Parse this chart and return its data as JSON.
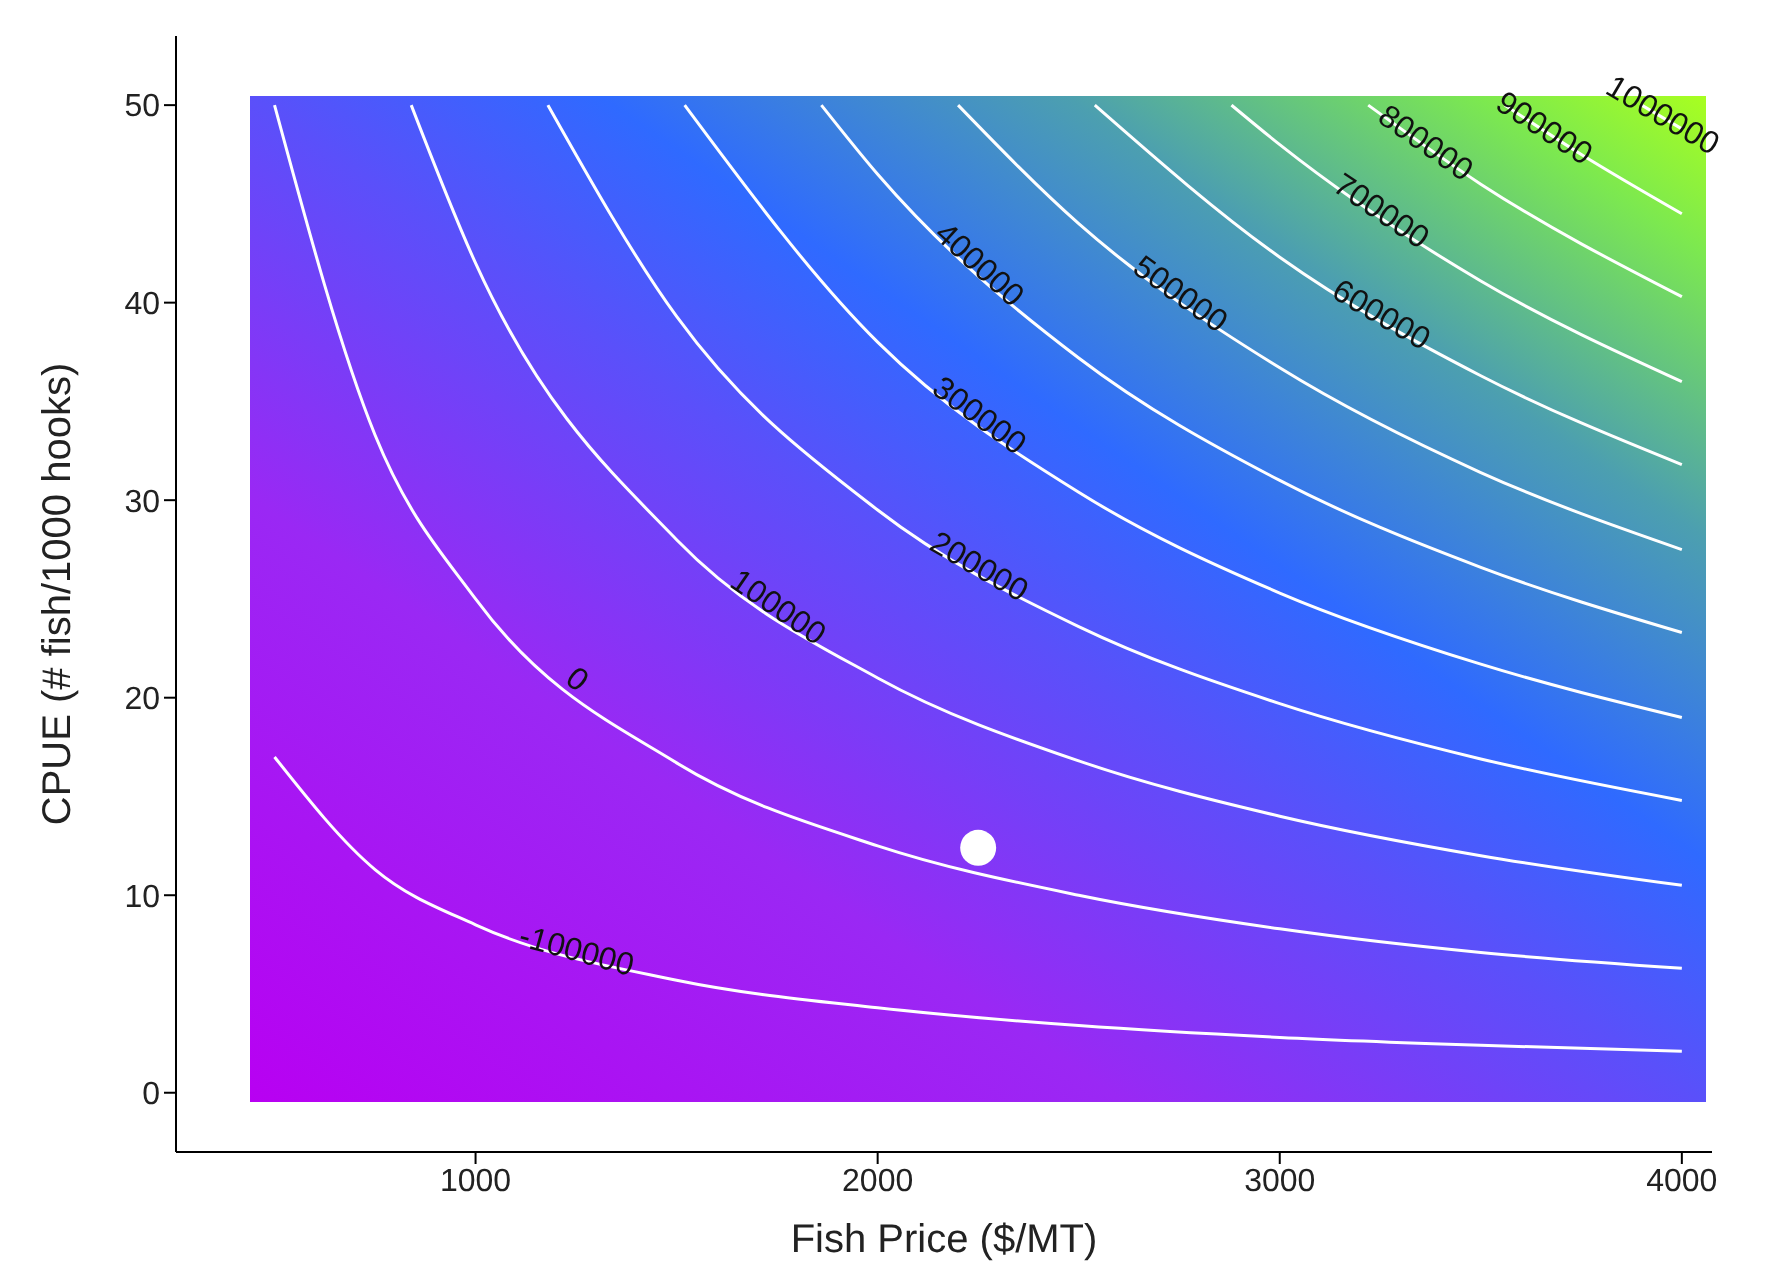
{
  "chart_data": {
    "type": "line",
    "xlabel": "Fish Price ($/MT)",
    "ylabel": "CPUE (# fish/1000 hooks)",
    "xlim": [
      255,
      4075
    ],
    "xticks": [
      1000,
      2000,
      3000,
      4000
    ],
    "ylim": [
      -3,
      53.5
    ],
    "yticks": [
      0,
      10,
      20,
      30,
      40,
      50
    ],
    "grid": false,
    "legend": false,
    "marker": "none",
    "line_style": "solid",
    "series": [
      {
        "name": "-100000",
        "color": "#ffffff",
        "x": [
          500,
          750,
          1000,
          1500,
          2000,
          2500,
          3000,
          3500,
          4000
        ],
        "values": [
          17.0,
          11.3,
          8.5,
          5.7,
          4.3,
          3.4,
          2.8,
          2.4,
          2.1
        ]
      },
      {
        "name": "0",
        "color": "#ffffff",
        "x": [
          500,
          750,
          1000,
          1500,
          2000,
          2500,
          3000,
          3500,
          4000
        ],
        "values": [
          50,
          33.3,
          25,
          16.7,
          12.5,
          10,
          8.3,
          7.1,
          6.3
        ]
      },
      {
        "name": "100000",
        "color": "#ffffff",
        "x": [
          840,
          1000,
          1500,
          2000,
          2500,
          3000,
          3500,
          4000
        ],
        "values": [
          50,
          42,
          28,
          21,
          16.8,
          14,
          12,
          10.5
        ]
      },
      {
        "name": "200000",
        "color": "#ffffff",
        "x": [
          1180,
          1500,
          2000,
          2500,
          3000,
          3500,
          4000
        ],
        "values": [
          50,
          39.3,
          29.5,
          23.6,
          19.7,
          16.9,
          14.8
        ]
      },
      {
        "name": "300000",
        "color": "#ffffff",
        "x": [
          1520,
          2000,
          2500,
          3000,
          3500,
          4000
        ],
        "values": [
          50,
          38,
          30.4,
          25.3,
          21.7,
          19
        ]
      },
      {
        "name": "400000",
        "color": "#ffffff",
        "x": [
          1860,
          2000,
          2500,
          3000,
          3500,
          4000
        ],
        "values": [
          50,
          46.5,
          37.2,
          31,
          26.6,
          23.3
        ]
      },
      {
        "name": "500000",
        "color": "#ffffff",
        "x": [
          2200,
          2500,
          3000,
          3500,
          4000
        ],
        "values": [
          50,
          44,
          36.7,
          31.4,
          27.5
        ]
      },
      {
        "name": "600000",
        "color": "#ffffff",
        "x": [
          2540,
          3000,
          3500,
          4000
        ],
        "values": [
          50,
          42.3,
          36.3,
          31.8
        ]
      },
      {
        "name": "700000",
        "color": "#ffffff",
        "x": [
          2880,
          3000,
          3500,
          4000
        ],
        "values": [
          50,
          48,
          41.1,
          36
        ]
      },
      {
        "name": "800000",
        "color": "#ffffff",
        "x": [
          3220,
          3500,
          4000
        ],
        "values": [
          50,
          46,
          40.3
        ]
      },
      {
        "name": "900000",
        "color": "#ffffff",
        "x": [
          3560,
          3750,
          4000
        ],
        "values": [
          50,
          47.5,
          44.5
        ]
      },
      {
        "name": "1000000",
        "color": "#ffffff",
        "x": [
          3900,
          4000
        ],
        "values": [
          50,
          48.8
        ]
      },
      {
        "type": "scatter",
        "color": "#ffffff",
        "marker": "circle",
        "x": [
          2250
        ],
        "values": [
          12.4
        ]
      }
    ]
  }
}
